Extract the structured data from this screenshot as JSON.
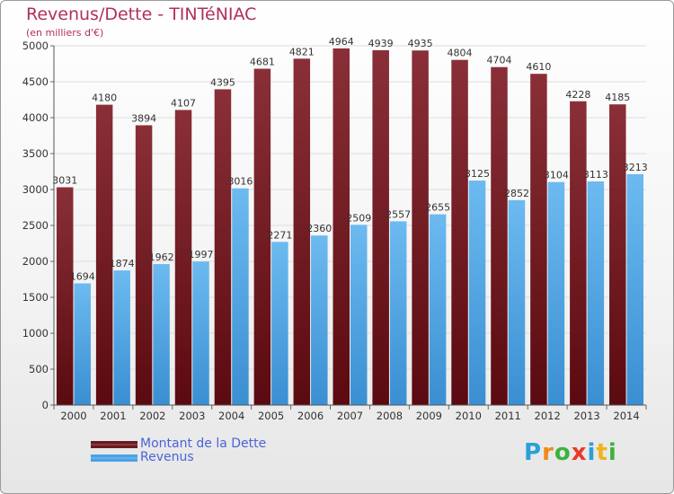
{
  "colors": {
    "title": "#b0305a",
    "legend_text": "#4a64d8",
    "debt_top": "#8a2f37",
    "debt_bottom": "#5a0a10",
    "revenue_top": "#6cbaf0",
    "revenue_bottom": "#3a8fd2",
    "grid": "#dddddd",
    "axis_text": "#333333"
  },
  "header": {
    "title": "Revenus/Dette - TINTéNIAC",
    "subtitle": "(en milliers d'€)"
  },
  "legend": {
    "items": [
      {
        "label": "Montant de la Dette",
        "color": "#6b1a20"
      },
      {
        "label": "Revenus",
        "color": "#4aa3e6"
      }
    ]
  },
  "logo": {
    "text": "Proxiti",
    "letter_colors": [
      "#2aa0d8",
      "#f08a1a",
      "#3db23d",
      "#e83a2a",
      "#2aa0d8",
      "#f0b41a",
      "#3db23d"
    ]
  },
  "chart_data": {
    "type": "bar",
    "categories": [
      "2000",
      "2001",
      "2002",
      "2003",
      "2004",
      "2005",
      "2006",
      "2007",
      "2008",
      "2009",
      "2010",
      "2011",
      "2012",
      "2013",
      "2014"
    ],
    "series": [
      {
        "name": "Montant de la Dette",
        "values": [
          3031,
          4180,
          3894,
          4107,
          4395,
          4681,
          4821,
          4964,
          4939,
          4935,
          4804,
          4704,
          4610,
          4228,
          4185
        ]
      },
      {
        "name": "Revenus",
        "values": [
          1694,
          1874,
          1962,
          1997,
          3016,
          2271,
          2360,
          2509,
          2557,
          2655,
          3125,
          2852,
          3104,
          3113,
          3213
        ]
      }
    ],
    "title": "Revenus/Dette - TINTéNIAC",
    "subtitle": "(en milliers d'€)",
    "ylim": [
      0,
      5000
    ],
    "yticks": [
      0,
      500,
      1000,
      1500,
      2000,
      2500,
      3000,
      3500,
      4000,
      4500,
      5000
    ],
    "grid": true,
    "legend_position": "bottom-left"
  }
}
